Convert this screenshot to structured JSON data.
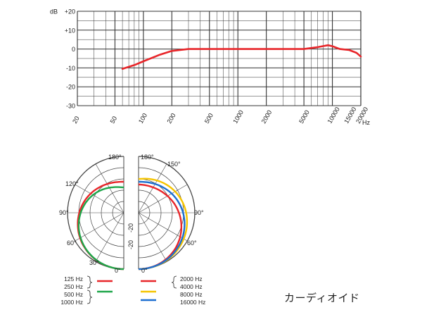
{
  "chart_data": [
    {
      "type": "line",
      "title": "",
      "xlabel": "Hz",
      "ylabel": "dB",
      "x_scale": "log",
      "xlim": [
        20,
        20000
      ],
      "ylim": [
        -30,
        20
      ],
      "grid": true,
      "y_ticks": [
        "+20",
        "+10",
        "0",
        "-10",
        "-20",
        "-30"
      ],
      "x_ticks": [
        "20",
        "50",
        "100",
        "200",
        "500",
        "1000",
        "2000",
        "5000",
        "10000",
        "15000",
        "20000"
      ],
      "series": [
        {
          "color": "#e8262a",
          "x": [
            60,
            80,
            100,
            150,
            200,
            300,
            500,
            1000,
            2000,
            5000,
            7000,
            9000,
            10000,
            12000,
            15000,
            18000,
            20000
          ],
          "y": [
            -10.5,
            -8.5,
            -6.5,
            -3,
            -1,
            0,
            0,
            0,
            0,
            0,
            1,
            2,
            1.5,
            0,
            -0.5,
            -2,
            -4
          ]
        }
      ]
    },
    {
      "type": "polar",
      "title": "",
      "angle_labels": [
        "180°",
        "120°",
        "90°",
        "60°",
        "30°",
        "0°"
      ],
      "angle_labels_right": [
        "180°",
        "150°",
        "90°",
        "60°",
        "0°"
      ],
      "radius_label": "-20",
      "legend": [
        {
          "label": "125 Hz",
          "color": "#e8262a"
        },
        {
          "label": "250 Hz",
          "color": "#e8262a"
        },
        {
          "label": "500 Hz",
          "color": "#1ea64a"
        },
        {
          "label": "1000 Hz",
          "color": "#1ea64a"
        },
        {
          "label": "2000 Hz",
          "color": "#e8262a"
        },
        {
          "label": "4000 Hz",
          "color": "#e8262a"
        },
        {
          "label": "8000 Hz",
          "color": "#f5c400"
        },
        {
          "label": "16000 Hz",
          "color": "#1c6fd1"
        }
      ],
      "series": [
        {
          "name": "125 Hz / 250 Hz",
          "color": "#e8262a",
          "side": "left",
          "shape": "cardioid"
        },
        {
          "name": "500 Hz / 1000 Hz",
          "color": "#1ea64a",
          "side": "left",
          "shape": "cardioid"
        },
        {
          "name": "2000 Hz / 4000 Hz",
          "color": "#e8262a",
          "side": "right",
          "shape": "cardioid"
        },
        {
          "name": "8000 Hz",
          "color": "#f5c400",
          "side": "right",
          "shape": "cardioid"
        },
        {
          "name": "16000 Hz",
          "color": "#1c6fd1",
          "side": "right",
          "shape": "cardioid"
        }
      ]
    }
  ],
  "caption": "カーディオイド"
}
